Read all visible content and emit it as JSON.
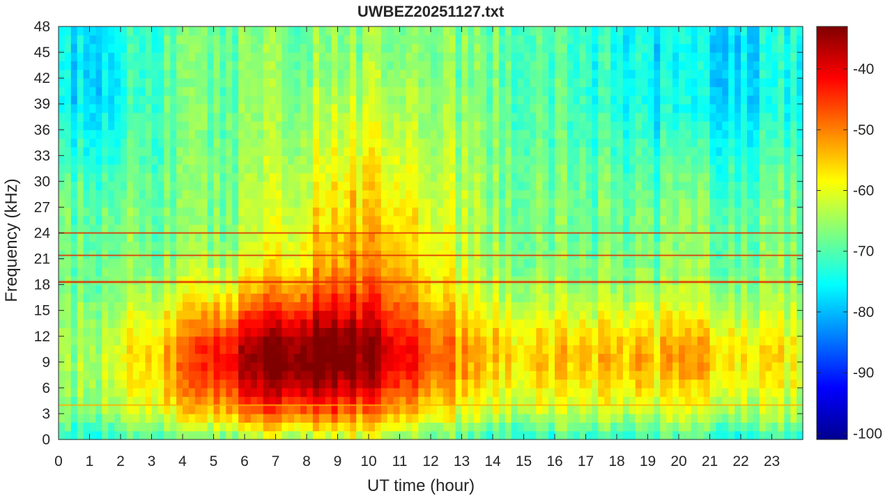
{
  "chart_data": {
    "type": "heatmap",
    "title": "UWBEZ20251127.txt",
    "xlabel": "UT time (hour)",
    "ylabel": "Frequency (kHz)",
    "xlim": [
      0,
      24
    ],
    "ylim": [
      0,
      48
    ],
    "x_ticks": [
      0,
      1,
      2,
      3,
      4,
      5,
      6,
      7,
      8,
      9,
      10,
      11,
      12,
      13,
      14,
      15,
      16,
      17,
      18,
      19,
      20,
      21,
      22,
      23
    ],
    "y_ticks": [
      0,
      3,
      6,
      9,
      12,
      15,
      18,
      21,
      24,
      27,
      30,
      33,
      36,
      39,
      42,
      45,
      48
    ],
    "colorbar": {
      "range": [
        -101,
        -33
      ],
      "ticks": [
        -100,
        -90,
        -80,
        -70,
        -60,
        -50,
        -40
      ],
      "colormap": "jet"
    },
    "persistent_lines_khz": [
      18.3,
      21.4,
      24.0,
      4.0
    ],
    "features": {
      "max_intensity_region": "4–12 UT, 3–15 kHz (~ -40 dB)",
      "quiet_high_freq": "17–24 UT above 27 kHz (~ -80 dB)",
      "enhanced_band": "8.5–11 UT up to ~35 kHz"
    }
  }
}
